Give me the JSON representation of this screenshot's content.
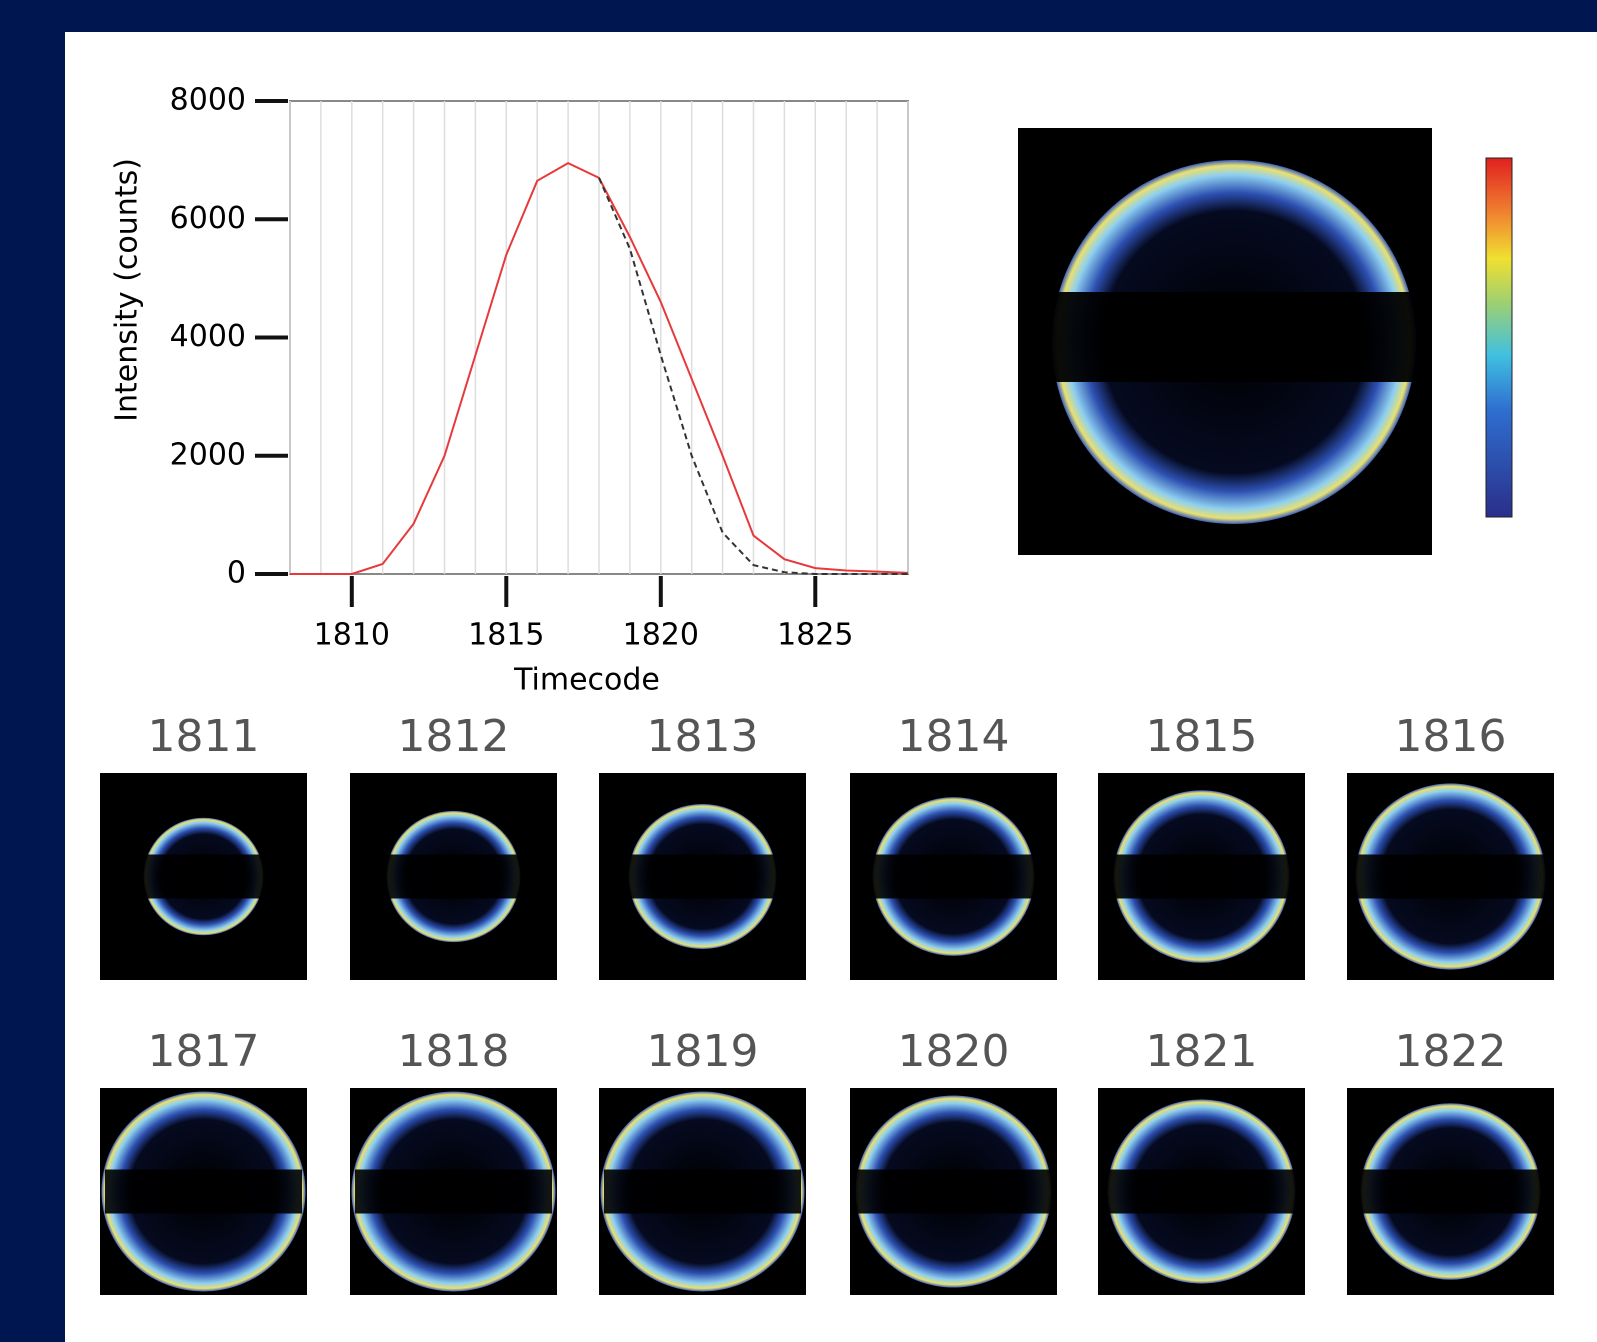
{
  "chart_data": {
    "type": "line",
    "xlabel": "Timecode",
    "ylabel": "Intensity (counts)",
    "x": [
      1808,
      1809,
      1810,
      1811,
      1812,
      1813,
      1814,
      1815,
      1816,
      1817,
      1818,
      1819,
      1820,
      1821,
      1822,
      1823,
      1824,
      1825,
      1826,
      1827,
      1828
    ],
    "series": [
      {
        "color": "#e8393a",
        "dash": false,
        "values": [
          0,
          0,
          0,
          170,
          850,
          2000,
          3700,
          5400,
          6650,
          6950,
          6700,
          5700,
          4600,
          3300,
          2000,
          650,
          250,
          100,
          60,
          40,
          20
        ]
      },
      {
        "color": "#333333",
        "dash": true,
        "values": [
          null,
          null,
          null,
          null,
          null,
          null,
          null,
          null,
          null,
          null,
          6700,
          5500,
          3700,
          2000,
          700,
          150,
          30,
          0,
          0,
          0,
          0
        ]
      }
    ],
    "xlim": [
      1808,
      1828
    ],
    "ylim": [
      0,
      8000
    ],
    "xticks": [
      1810,
      1815,
      1820,
      1825
    ],
    "yticks": [
      0,
      2000,
      4000,
      6000,
      8000
    ],
    "grid": true
  },
  "frames": [
    "1811",
    "1812",
    "1813",
    "1814",
    "1815",
    "1816",
    "1817",
    "1818",
    "1819",
    "1820",
    "1821",
    "1822"
  ]
}
